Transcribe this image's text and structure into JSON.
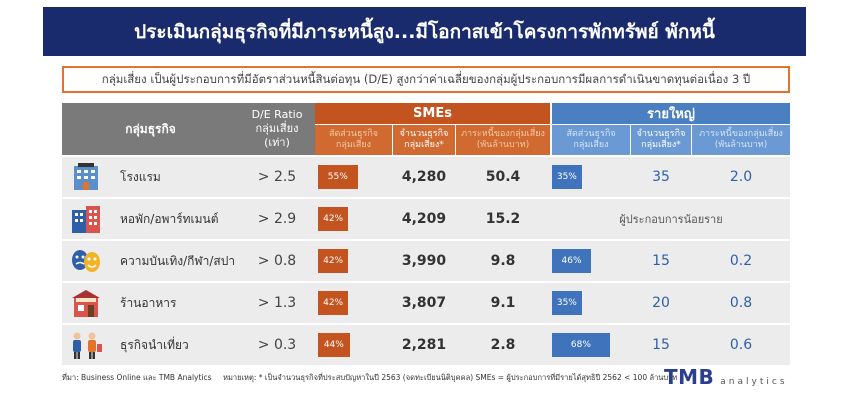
{
  "title": "ประเมินกลุ่มธุรกิจที่มีภาระหนี้สูง...มีโอกาสเข้าโครงการพักทรัพย์ พักหนี้",
  "subtitle": "กลุ่มเสี่ยง เป็นผู้ประกอบการที่มีอัตราส่วนหนี้สินต่อทุน (D/E) สูงกว่าค่าเฉลี่ยของกลุ่มผู้ประกอบการมีผลการดำเนินขาดทุนต่อเนื่อง 3 ปี",
  "header": {
    "group": "กลุ่มธุรกิจ",
    "de_ratio": "D/E Ratio",
    "de_risk": "กลุ่มเสี่ยง",
    "de_unit": "(เท่า)",
    "sme": "SMEs",
    "big": "รายใหญ่",
    "share_line1": "สัดส่วนธุรกิจ",
    "share_line2": "กลุ่มเสี่ยง",
    "count_line1": "จำนวนธุรกิจ",
    "count_line2": "กลุ่มเสี่ยง*",
    "debt_line1": "ภาระหนี้ของกลุ่มเสี่ยง",
    "debt_line2": "(พันล้านบาท)"
  },
  "rows": [
    {
      "label": "โรงแรม",
      "icon": "hotel-icon",
      "de": "> 2.5",
      "sme_share": "55%",
      "sme_share_value": 55,
      "sme_count": "4,280",
      "sme_debt": "50.4",
      "big_share": "35%",
      "big_share_value": 35,
      "big_count": "35",
      "big_debt": "2.0"
    },
    {
      "label": "หอพัก/อพาร์ทเมนต์",
      "icon": "apartment-icon",
      "de": "> 2.9",
      "sme_share": "42%",
      "sme_share_value": 42,
      "sme_count": "4,209",
      "sme_debt": "15.2",
      "big_note": "ผู้ประกอบการน้อยราย"
    },
    {
      "label": "ความบันเทิง/กีฬา/สปา",
      "icon": "entertainment-icon",
      "de": "> 0.8",
      "sme_share": "42%",
      "sme_share_value": 42,
      "sme_count": "3,990",
      "sme_debt": "9.8",
      "big_share": "46%",
      "big_share_value": 46,
      "big_count": "15",
      "big_debt": "0.2"
    },
    {
      "label": "ร้านอาหาร",
      "icon": "restaurant-icon",
      "de": "> 1.3",
      "sme_share": "42%",
      "sme_share_value": 42,
      "sme_count": "3,807",
      "sme_debt": "9.1",
      "big_share": "35%",
      "big_share_value": 35,
      "big_count": "20",
      "big_debt": "0.8"
    },
    {
      "label": "ธุรกิจนำเที่ยว",
      "icon": "tourism-icon",
      "de": "> 0.3",
      "sme_share": "44%",
      "sme_share_value": 44,
      "sme_count": "2,281",
      "sme_debt": "2.8",
      "big_share": "68%",
      "big_share_value": 68,
      "big_count": "15",
      "big_debt": "0.6"
    }
  ],
  "footer": {
    "source": "ที่มา: Business Online และ TMB Analytics",
    "note": "หมายเหตุ: * เป็นจำนวนธุรกิจที่ประสบปัญหาในปี 2563 (จดทะเบียนนิติบุคคล) SMEs = ผู้ประกอบการที่มีรายได้สุทธิปี 2562 < 100 ล้านบาท",
    "logo_main": "TMB",
    "logo_sub": "analytics"
  },
  "colors": {
    "navy": "#1a2b6d",
    "orange": "#c4541f",
    "blue": "#3f74bd",
    "gray": "#7a7a7a"
  }
}
